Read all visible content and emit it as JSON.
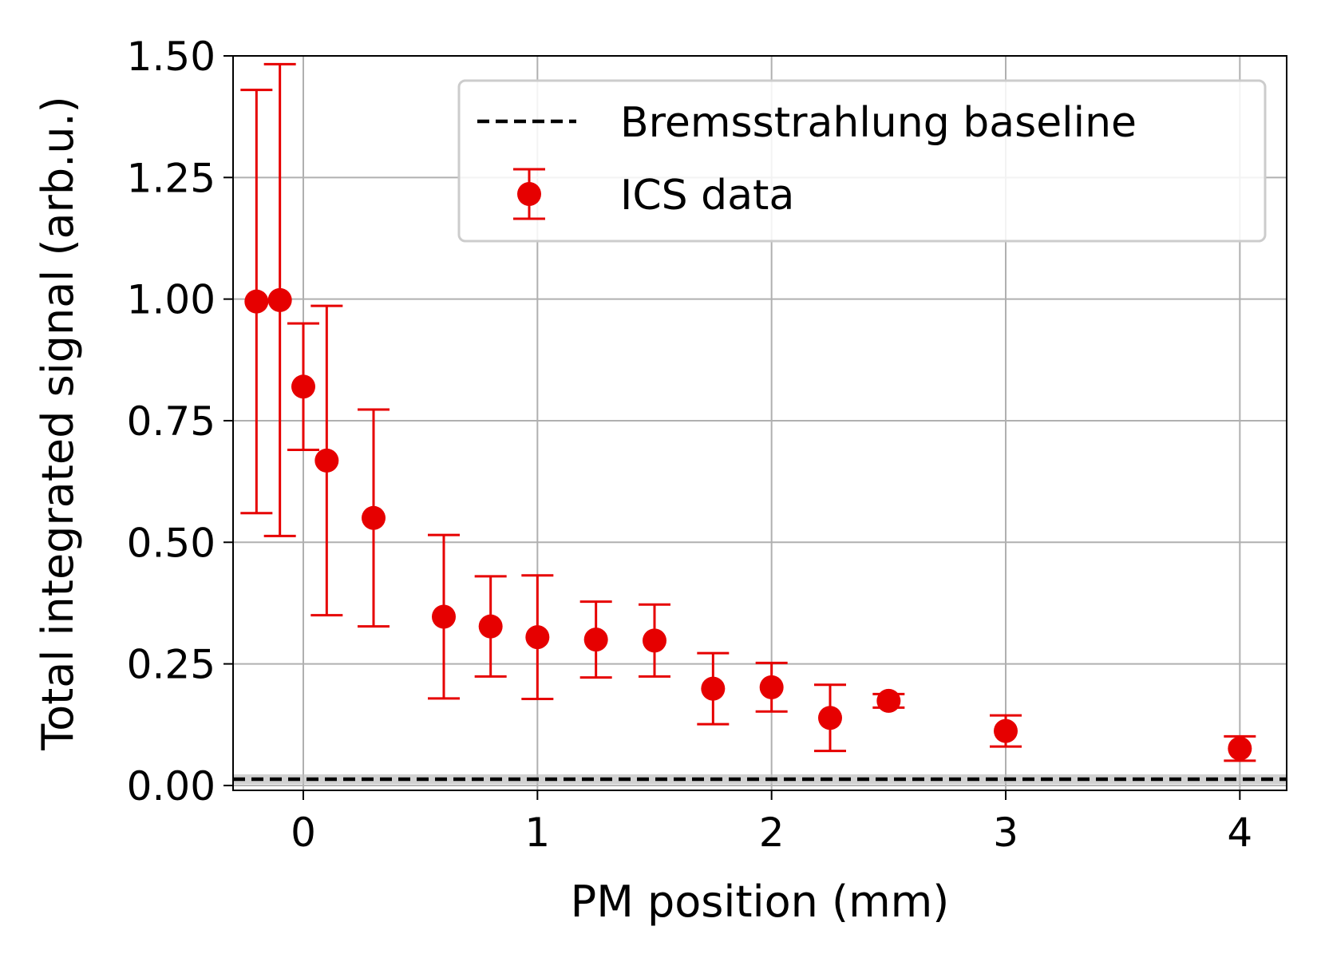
{
  "chart_data": {
    "type": "scatter",
    "xlabel": "PM position (mm)",
    "ylabel": "Total integrated signal (arb.u.)",
    "xlim": [
      -0.3,
      4.2
    ],
    "ylim": [
      -0.01,
      1.5
    ],
    "x_ticks": [
      0,
      1,
      2,
      3,
      4
    ],
    "x_tick_labels": [
      "0",
      "1",
      "2",
      "3",
      "4"
    ],
    "y_ticks": [
      0.0,
      0.25,
      0.5,
      0.75,
      1.0,
      1.25,
      1.5
    ],
    "y_tick_labels": [
      "0.00",
      "0.25",
      "0.50",
      "0.75",
      "1.00",
      "1.25",
      "1.50"
    ],
    "grid": true,
    "legend_position": "top-right",
    "colors": {
      "data": "#e60000",
      "baseline": "#000000",
      "band": "#bfbfbf",
      "grid": "#b0b0b0"
    },
    "series": [
      {
        "name": "Bremsstrahlung baseline",
        "kind": "hline",
        "y": 0.013,
        "band": [
          0.003,
          0.023
        ]
      },
      {
        "name": "ICS data",
        "kind": "errorbar",
        "points": [
          {
            "x": -0.2,
            "y": 0.995,
            "err": 0.435
          },
          {
            "x": -0.1,
            "y": 0.998,
            "err": 0.485
          },
          {
            "x": 0.0,
            "y": 0.82,
            "err": 0.13
          },
          {
            "x": 0.1,
            "y": 0.668,
            "err": 0.318
          },
          {
            "x": 0.3,
            "y": 0.55,
            "err": 0.223
          },
          {
            "x": 0.6,
            "y": 0.347,
            "err": 0.168
          },
          {
            "x": 0.8,
            "y": 0.327,
            "err": 0.103
          },
          {
            "x": 1.0,
            "y": 0.305,
            "err": 0.127
          },
          {
            "x": 1.25,
            "y": 0.3,
            "err": 0.078
          },
          {
            "x": 1.5,
            "y": 0.298,
            "err": 0.074
          },
          {
            "x": 1.75,
            "y": 0.199,
            "err": 0.073
          },
          {
            "x": 2.0,
            "y": 0.202,
            "err": 0.05
          },
          {
            "x": 2.25,
            "y": 0.139,
            "err": 0.068
          },
          {
            "x": 2.5,
            "y": 0.174,
            "err": 0.014
          },
          {
            "x": 3.0,
            "y": 0.112,
            "err": 0.032
          },
          {
            "x": 4.0,
            "y": 0.076,
            "err": 0.025
          }
        ]
      }
    ]
  }
}
